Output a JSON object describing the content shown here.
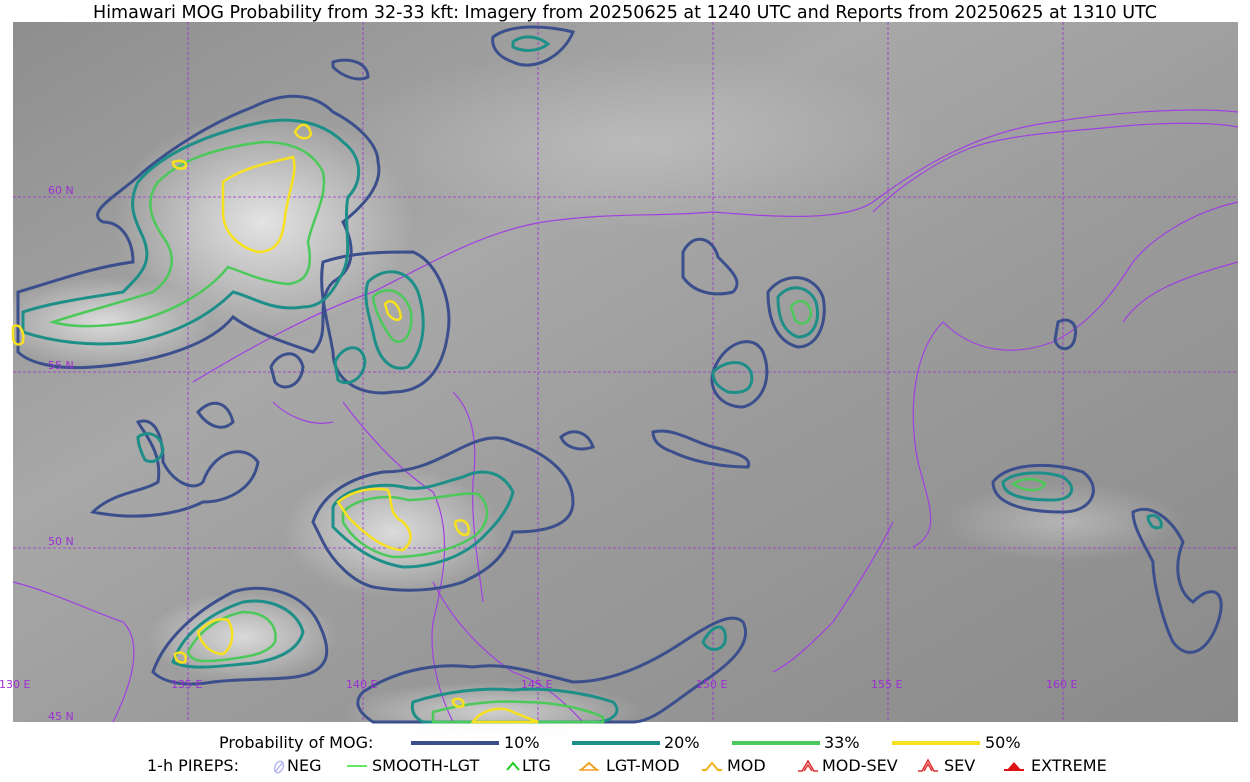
{
  "title": "Himawari MOG Probability from 32-33 kft: Imagery from 20250625 at 1240 UTC and Reports from 20250625 at 1310 UTC",
  "map": {
    "lat_labels": [
      "60 N",
      "55 N",
      "50 N",
      "45 N"
    ],
    "lon_labels": [
      "130 E",
      "135 E",
      "140 E",
      "145 E",
      "150 E",
      "155 E",
      "160 E"
    ],
    "colors": {
      "graticule": "#9b30d0",
      "coastline": "#a040e0",
      "p10": "#3b4f8c",
      "p20": "#1e8f88",
      "p33": "#4cc95a",
      "p50": "#f7e11e"
    }
  },
  "legend": {
    "probability_label": "Probability of MOG:",
    "levels": [
      {
        "label": "10%",
        "color": "#3b4f8c"
      },
      {
        "label": "20%",
        "color": "#1e8f88"
      },
      {
        "label": "33%",
        "color": "#4cc95a"
      },
      {
        "label": "50%",
        "color": "#f7e11e"
      }
    ],
    "pireps_label": "1-h PIREPS:",
    "pireps": [
      {
        "label": "NEG",
        "icon": "neg-icon",
        "color": "#b8b8f0"
      },
      {
        "label": "SMOOTH-LGT",
        "icon": "smooth-lgt-icon",
        "color": "#33dd33"
      },
      {
        "label": "LTG",
        "icon": "ltg-icon",
        "color": "#22cc22"
      },
      {
        "label": "LGT-MOD",
        "icon": "lgt-mod-icon",
        "color": "#f0a020"
      },
      {
        "label": "MOD",
        "icon": "mod-icon",
        "color": "#f0b020"
      },
      {
        "label": "MOD-SEV",
        "icon": "mod-sev-icon",
        "color": "#e03030"
      },
      {
        "label": "SEV",
        "icon": "sev-icon",
        "color": "#e03030"
      },
      {
        "label": "EXTREME",
        "icon": "extreme-icon",
        "color": "#dd1111"
      }
    ]
  }
}
